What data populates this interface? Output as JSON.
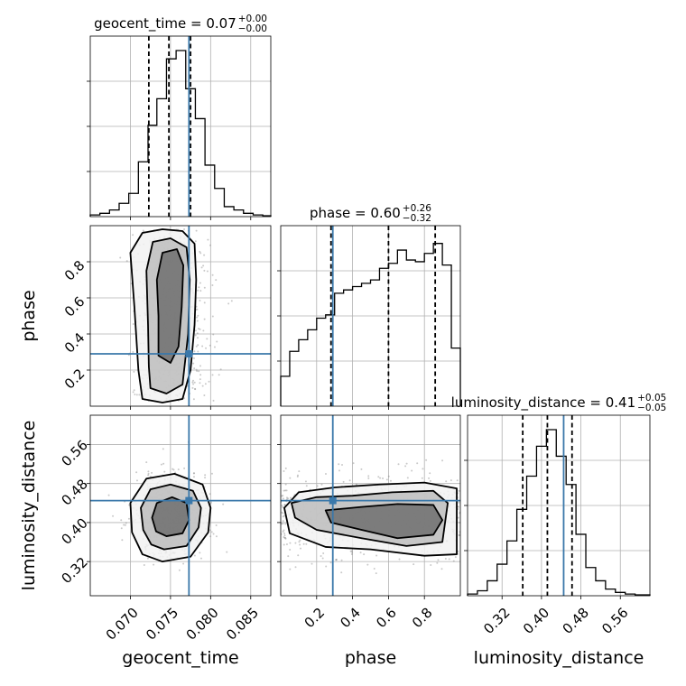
{
  "chart_data": {
    "type": "corner",
    "parameters": [
      "geocent_time",
      "phase",
      "luminosity_distance"
    ],
    "axis_labels": [
      "geocent_time",
      "phase",
      "luminosity_distance"
    ],
    "ranges": {
      "geocent_time": [
        0.065,
        0.0875
      ],
      "phase": [
        0.0,
        1.0
      ],
      "luminosity_distance": [
        0.25,
        0.62
      ]
    },
    "ticks": {
      "geocent_time": [
        {
          "v": 0.07,
          "label": "0.070"
        },
        {
          "v": 0.075,
          "label": "0.075"
        },
        {
          "v": 0.08,
          "label": "0.080"
        },
        {
          "v": 0.085,
          "label": "0.085"
        }
      ],
      "phase": [
        {
          "v": 0.2,
          "label": "0.2"
        },
        {
          "v": 0.4,
          "label": "0.4"
        },
        {
          "v": 0.6,
          "label": "0.6"
        },
        {
          "v": 0.8,
          "label": "0.8"
        }
      ],
      "luminosity_distance": [
        {
          "v": 0.32,
          "label": "0.32"
        },
        {
          "v": 0.4,
          "label": "0.40"
        },
        {
          "v": 0.48,
          "label": "0.48"
        },
        {
          "v": 0.56,
          "label": "0.56"
        }
      ]
    },
    "titles": [
      {
        "param": "geocent_time",
        "name": "geocent_time",
        "value": "0.07",
        "plus": "+0.00",
        "minus": "−0.00"
      },
      {
        "param": "phase",
        "name": "phase",
        "value": "0.60",
        "plus": "+0.26",
        "minus": "−0.32"
      },
      {
        "param": "luminosity_distance",
        "name": "luminosity_distance",
        "value": "0.41",
        "plus": "+0.05",
        "minus": "−0.05"
      }
    ],
    "injection": {
      "geocent_time": 0.0773,
      "phase": 0.29,
      "luminosity_distance": 0.445
    },
    "quantiles": {
      "geocent_time": [
        0.0723,
        0.0748,
        0.0775
      ],
      "phase": [
        0.28,
        0.6,
        0.86
      ],
      "luminosity_distance": [
        0.362,
        0.412,
        0.462
      ]
    },
    "histograms": {
      "geocent_time": {
        "edges": [
          0.065,
          0.0662,
          0.0674,
          0.0686,
          0.0698,
          0.071,
          0.0722,
          0.0733,
          0.0745,
          0.0757,
          0.0769,
          0.0781,
          0.0793,
          0.0805,
          0.0817,
          0.0829,
          0.0841,
          0.0853,
          0.0865,
          0.0875
        ],
        "counts": [
          0.01,
          0.02,
          0.04,
          0.08,
          0.14,
          0.33,
          0.55,
          0.71,
          0.95,
          1.0,
          0.77,
          0.59,
          0.31,
          0.17,
          0.06,
          0.04,
          0.02,
          0.01,
          0.005
        ]
      },
      "phase": {
        "edges": [
          0.0,
          0.05,
          0.1,
          0.15,
          0.2,
          0.25,
          0.3,
          0.35,
          0.4,
          0.45,
          0.5,
          0.55,
          0.6,
          0.65,
          0.7,
          0.75,
          0.8,
          0.85,
          0.9,
          0.95,
          1.0
        ],
        "counts": [
          0.18,
          0.33,
          0.4,
          0.46,
          0.53,
          0.55,
          0.68,
          0.7,
          0.72,
          0.74,
          0.76,
          0.83,
          0.86,
          0.94,
          0.88,
          0.87,
          0.92,
          0.98,
          0.85,
          0.35
        ]
      },
      "luminosity_distance": {
        "edges": [
          0.25,
          0.27,
          0.29,
          0.31,
          0.33,
          0.35,
          0.37,
          0.39,
          0.41,
          0.43,
          0.45,
          0.47,
          0.49,
          0.51,
          0.53,
          0.55,
          0.57,
          0.59,
          0.62
        ],
        "counts": [
          0.01,
          0.03,
          0.09,
          0.19,
          0.33,
          0.52,
          0.72,
          0.9,
          1.0,
          0.84,
          0.67,
          0.37,
          0.17,
          0.09,
          0.04,
          0.02,
          0.01,
          0.005
        ]
      }
    },
    "contours_2d": [
      {
        "x": "geocent_time",
        "y": "phase",
        "levels": [
          [
            [
              0.0715,
              0.04
            ],
            [
              0.074,
              0.02
            ],
            [
              0.0765,
              0.04
            ],
            [
              0.0775,
              0.2
            ],
            [
              0.078,
              0.45
            ],
            [
              0.0782,
              0.7
            ],
            [
              0.078,
              0.9
            ],
            [
              0.0765,
              0.97
            ],
            [
              0.074,
              0.98
            ],
            [
              0.0715,
              0.96
            ],
            [
              0.07,
              0.85
            ],
            [
              0.0705,
              0.55
            ],
            [
              0.071,
              0.2
            ]
          ],
          [
            [
              0.0725,
              0.1
            ],
            [
              0.0745,
              0.07
            ],
            [
              0.0765,
              0.12
            ],
            [
              0.0772,
              0.4
            ],
            [
              0.0774,
              0.7
            ],
            [
              0.077,
              0.88
            ],
            [
              0.075,
              0.93
            ],
            [
              0.0728,
              0.91
            ],
            [
              0.072,
              0.75
            ],
            [
              0.0722,
              0.45
            ],
            [
              0.0723,
              0.22
            ]
          ],
          [
            [
              0.0735,
              0.28
            ],
            [
              0.075,
              0.24
            ],
            [
              0.076,
              0.33
            ],
            [
              0.0764,
              0.55
            ],
            [
              0.0766,
              0.78
            ],
            [
              0.0758,
              0.87
            ],
            [
              0.074,
              0.85
            ],
            [
              0.0733,
              0.7
            ],
            [
              0.0735,
              0.5
            ]
          ]
        ]
      },
      {
        "x": "geocent_time",
        "y": "luminosity_distance",
        "levels": [
          [
            [
              0.074,
              0.32
            ],
            [
              0.0775,
              0.33
            ],
            [
              0.0797,
              0.38
            ],
            [
              0.08,
              0.43
            ],
            [
              0.079,
              0.478
            ],
            [
              0.0755,
              0.5
            ],
            [
              0.072,
              0.49
            ],
            [
              0.07,
              0.44
            ],
            [
              0.0702,
              0.38
            ],
            [
              0.0715,
              0.335
            ]
          ],
          [
            [
              0.0742,
              0.345
            ],
            [
              0.077,
              0.352
            ],
            [
              0.0785,
              0.39
            ],
            [
              0.0788,
              0.43
            ],
            [
              0.0778,
              0.465
            ],
            [
              0.075,
              0.478
            ],
            [
              0.0725,
              0.468
            ],
            [
              0.0713,
              0.43
            ],
            [
              0.0716,
              0.385
            ],
            [
              0.0726,
              0.355
            ]
          ],
          [
            [
              0.0745,
              0.372
            ],
            [
              0.0765,
              0.378
            ],
            [
              0.0773,
              0.405
            ],
            [
              0.077,
              0.44
            ],
            [
              0.0752,
              0.452
            ],
            [
              0.0733,
              0.44
            ],
            [
              0.0727,
              0.41
            ],
            [
              0.0732,
              0.382
            ]
          ]
        ]
      },
      {
        "x": "phase",
        "y": "luminosity_distance",
        "levels": [
          [
            [
              0.02,
              0.43
            ],
            [
              0.1,
              0.462
            ],
            [
              0.3,
              0.472
            ],
            [
              0.55,
              0.478
            ],
            [
              0.8,
              0.482
            ],
            [
              0.98,
              0.47
            ],
            [
              0.98,
              0.335
            ],
            [
              0.8,
              0.332
            ],
            [
              0.5,
              0.345
            ],
            [
              0.25,
              0.35
            ],
            [
              0.05,
              0.378
            ]
          ],
          [
            [
              0.06,
              0.44
            ],
            [
              0.2,
              0.452
            ],
            [
              0.4,
              0.455
            ],
            [
              0.62,
              0.462
            ],
            [
              0.85,
              0.465
            ],
            [
              0.93,
              0.44
            ],
            [
              0.9,
              0.36
            ],
            [
              0.7,
              0.352
            ],
            [
              0.45,
              0.368
            ],
            [
              0.2,
              0.385
            ],
            [
              0.08,
              0.41
            ]
          ],
          [
            [
              0.25,
              0.425
            ],
            [
              0.45,
              0.432
            ],
            [
              0.65,
              0.438
            ],
            [
              0.85,
              0.436
            ],
            [
              0.9,
              0.405
            ],
            [
              0.85,
              0.375
            ],
            [
              0.65,
              0.368
            ],
            [
              0.45,
              0.385
            ],
            [
              0.28,
              0.4
            ]
          ]
        ]
      }
    ]
  }
}
